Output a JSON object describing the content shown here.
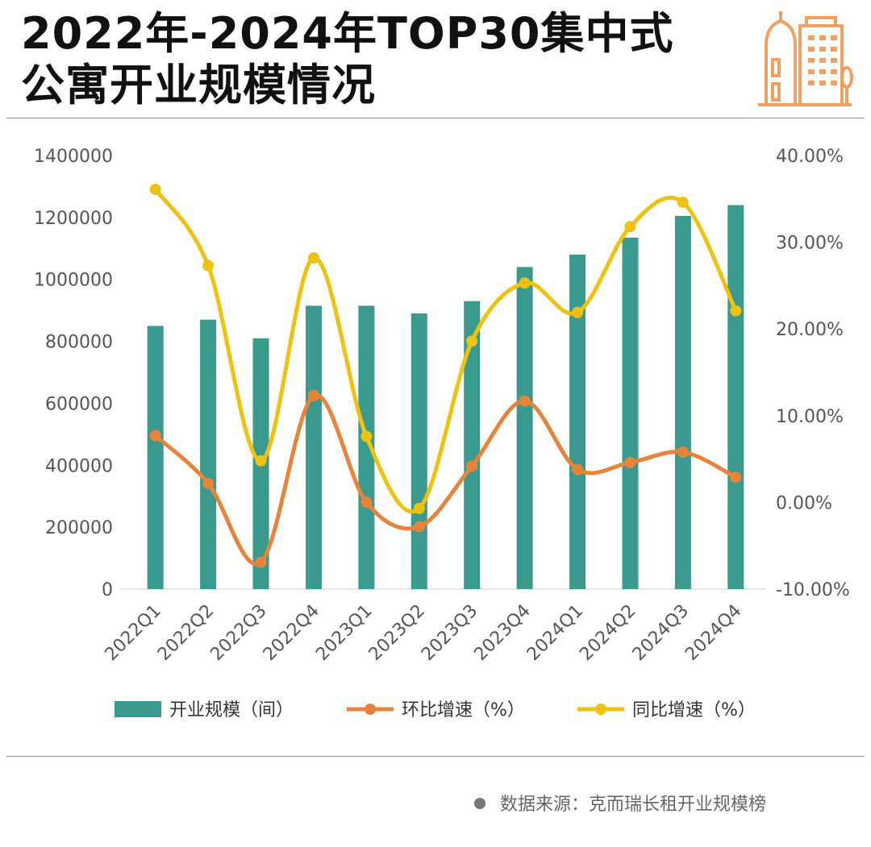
{
  "title_line1": "2022年-2024年TOP30集中式",
  "title_line2": "公寓开业规模情况",
  "logo_icon": "building-icon",
  "source": "数据来源：克而瑞长租开业规模榜",
  "colors": {
    "bar": "#3a9a8e",
    "qoq": "#e8843a",
    "yoy": "#eec20f",
    "logo": "#f0a060"
  },
  "chart_data": {
    "type": "bar",
    "categories": [
      "2022Q1",
      "2022Q2",
      "2022Q3",
      "2022Q4",
      "2023Q1",
      "2023Q2",
      "2023Q3",
      "2023Q4",
      "2024Q1",
      "2024Q2",
      "2024Q3",
      "2024Q4"
    ],
    "y_left": {
      "min": 0,
      "max": 1400000,
      "ticks": [
        "0",
        "200000",
        "400000",
        "600000",
        "800000",
        "1000000",
        "1200000",
        "1400000"
      ]
    },
    "y_right": {
      "min": -10,
      "max": 40,
      "ticks": [
        "-10.00%",
        "0.00%",
        "10.00%",
        "20.00%",
        "30.00%",
        "40.00%"
      ]
    },
    "series": [
      {
        "name": "开业规模（间）",
        "type": "bar",
        "axis": "left",
        "values": [
          850000,
          870000,
          810000,
          915000,
          915000,
          890000,
          930000,
          1040000,
          1080000,
          1135000,
          1205000,
          1240000
        ]
      },
      {
        "name": "环比增速（%）",
        "type": "line",
        "axis": "right",
        "values": [
          7.7,
          2.2,
          -6.9,
          12.3,
          0.0,
          -2.8,
          4.2,
          11.7,
          3.8,
          4.6,
          5.8,
          2.9
        ]
      },
      {
        "name": "同比增速（%）",
        "type": "line",
        "axis": "right",
        "values": [
          36.1,
          27.3,
          4.8,
          28.2,
          7.6,
          -0.7,
          18.6,
          25.3,
          21.9,
          31.8,
          34.6,
          22.1
        ]
      }
    ],
    "legend_position": "bottom",
    "grid": false
  }
}
